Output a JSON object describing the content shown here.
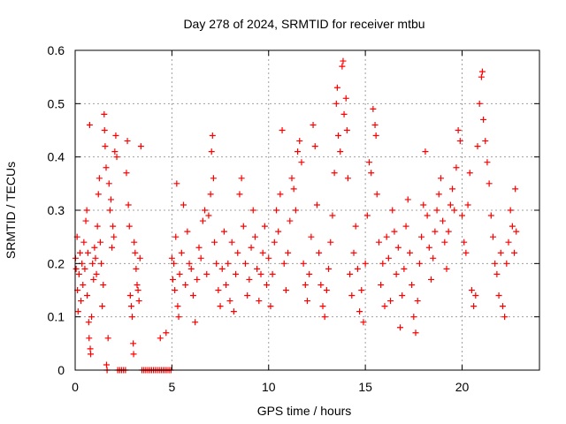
{
  "chart_data": {
    "type": "scatter",
    "title": "Day 278 of 2024, SRMTID for receiver mtbu",
    "xlabel": "GPS time / hours",
    "ylabel": "SRMTID / TECUs",
    "xlim": [
      0,
      24
    ],
    "ylim": [
      0,
      0.6
    ],
    "x_ticks": [
      0,
      5,
      10,
      15,
      20
    ],
    "x_tick_labels": [
      "0",
      "5",
      "10",
      "15",
      "20"
    ],
    "y_ticks": [
      0,
      0.1,
      0.2,
      0.3,
      0.4,
      0.5,
      0.6
    ],
    "y_tick_labels": [
      "0",
      "0.1",
      "0.2",
      "0.3",
      "0.4",
      "0.5",
      "0.6"
    ],
    "grid": true,
    "marker": "+",
    "color": "#ff0000",
    "series": [
      {
        "name": "SRMTID",
        "points": [
          [
            0.02,
            0.21
          ],
          [
            0.05,
            0.19
          ],
          [
            0.1,
            0.25
          ],
          [
            0.12,
            0.15
          ],
          [
            0.15,
            0.11
          ],
          [
            0.2,
            0.18
          ],
          [
            0.25,
            0.22
          ],
          [
            0.3,
            0.13
          ],
          [
            0.35,
            0.2
          ],
          [
            0.4,
            0.16
          ],
          [
            0.45,
            0.24
          ],
          [
            0.5,
            0.19
          ],
          [
            0.55,
            0.28
          ],
          [
            0.6,
            0.3
          ],
          [
            0.62,
            0.14
          ],
          [
            0.66,
            0.22
          ],
          [
            0.7,
            0.09
          ],
          [
            0.72,
            0.06
          ],
          [
            0.75,
            0.46
          ],
          [
            0.78,
            0.04
          ],
          [
            0.8,
            0.03
          ],
          [
            0.85,
            0.1
          ],
          [
            0.9,
            0.2
          ],
          [
            0.95,
            0.17
          ],
          [
            1.0,
            0.23
          ],
          [
            1.05,
            0.21
          ],
          [
            1.1,
            0.18
          ],
          [
            1.15,
            0.27
          ],
          [
            1.2,
            0.33
          ],
          [
            1.25,
            0.36
          ],
          [
            1.3,
            0.24
          ],
          [
            1.35,
            0.2
          ],
          [
            1.4,
            0.12
          ],
          [
            1.45,
            0.16
          ],
          [
            1.5,
            0.48
          ],
          [
            1.52,
            0.45
          ],
          [
            1.55,
            0.42
          ],
          [
            1.6,
            0.38
          ],
          [
            1.62,
            0.01
          ],
          [
            1.65,
            0.0
          ],
          [
            1.7,
            0.06
          ],
          [
            1.75,
            0.35
          ],
          [
            1.8,
            0.3
          ],
          [
            1.85,
            0.32
          ],
          [
            1.9,
            0.23
          ],
          [
            1.95,
            0.27
          ],
          [
            2.0,
            0.25
          ],
          [
            2.05,
            0.41
          ],
          [
            2.1,
            0.44
          ],
          [
            2.15,
            0.4
          ],
          [
            2.2,
            0.0
          ],
          [
            2.3,
            0.0
          ],
          [
            2.4,
            0.0
          ],
          [
            2.5,
            0.0
          ],
          [
            2.6,
            0.0
          ],
          [
            2.65,
            0.37
          ],
          [
            2.7,
            0.43
          ],
          [
            2.75,
            0.31
          ],
          [
            2.8,
            0.27
          ],
          [
            2.85,
            0.14
          ],
          [
            2.9,
            0.12
          ],
          [
            2.95,
            0.1
          ],
          [
            3.0,
            0.05
          ],
          [
            3.02,
            0.03
          ],
          [
            3.05,
            0.24
          ],
          [
            3.1,
            0.22
          ],
          [
            3.15,
            0.19
          ],
          [
            3.2,
            0.16
          ],
          [
            3.25,
            0.15
          ],
          [
            3.3,
            0.13
          ],
          [
            3.35,
            0.21
          ],
          [
            3.4,
            0.42
          ],
          [
            3.45,
            0.0
          ],
          [
            3.55,
            0.0
          ],
          [
            3.65,
            0.0
          ],
          [
            3.75,
            0.0
          ],
          [
            3.85,
            0.0
          ],
          [
            3.95,
            0.0
          ],
          [
            4.05,
            0.0
          ],
          [
            4.15,
            0.0
          ],
          [
            4.25,
            0.0
          ],
          [
            4.35,
            0.0
          ],
          [
            4.4,
            0.06
          ],
          [
            4.45,
            0.0
          ],
          [
            4.55,
            0.0
          ],
          [
            4.65,
            0.0
          ],
          [
            4.7,
            0.07
          ],
          [
            4.75,
            0.0
          ],
          [
            4.85,
            0.0
          ],
          [
            4.95,
            0.0
          ],
          [
            5.0,
            0.21
          ],
          [
            5.05,
            0.17
          ],
          [
            5.1,
            0.2
          ],
          [
            5.15,
            0.15
          ],
          [
            5.2,
            0.25
          ],
          [
            5.25,
            0.35
          ],
          [
            5.3,
            0.12
          ],
          [
            5.35,
            0.1
          ],
          [
            5.4,
            0.18
          ],
          [
            5.5,
            0.22
          ],
          [
            5.6,
            0.31
          ],
          [
            5.7,
            0.16
          ],
          [
            5.8,
            0.26
          ],
          [
            5.9,
            0.2
          ],
          [
            6.0,
            0.19
          ],
          [
            6.1,
            0.14
          ],
          [
            6.2,
            0.09
          ],
          [
            6.3,
            0.17
          ],
          [
            6.4,
            0.23
          ],
          [
            6.5,
            0.21
          ],
          [
            6.6,
            0.28
          ],
          [
            6.7,
            0.3
          ],
          [
            6.8,
            0.18
          ],
          [
            6.9,
            0.29
          ],
          [
            7.0,
            0.33
          ],
          [
            7.05,
            0.41
          ],
          [
            7.1,
            0.44
          ],
          [
            7.15,
            0.36
          ],
          [
            7.2,
            0.24
          ],
          [
            7.3,
            0.2
          ],
          [
            7.4,
            0.15
          ],
          [
            7.5,
            0.12
          ],
          [
            7.6,
            0.19
          ],
          [
            7.7,
            0.26
          ],
          [
            7.8,
            0.16
          ],
          [
            7.9,
            0.2
          ],
          [
            8.0,
            0.13
          ],
          [
            8.1,
            0.24
          ],
          [
            8.2,
            0.11
          ],
          [
            8.3,
            0.18
          ],
          [
            8.4,
            0.22
          ],
          [
            8.5,
            0.33
          ],
          [
            8.6,
            0.36
          ],
          [
            8.7,
            0.27
          ],
          [
            8.8,
            0.2
          ],
          [
            8.9,
            0.14
          ],
          [
            9.0,
            0.17
          ],
          [
            9.1,
            0.23
          ],
          [
            9.2,
            0.3
          ],
          [
            9.3,
            0.25
          ],
          [
            9.4,
            0.19
          ],
          [
            9.5,
            0.13
          ],
          [
            9.6,
            0.18
          ],
          [
            9.7,
            0.22
          ],
          [
            9.8,
            0.27
          ],
          [
            9.9,
            0.16
          ],
          [
            10.0,
            0.21
          ],
          [
            10.1,
            0.12
          ],
          [
            10.2,
            0.18
          ],
          [
            10.3,
            0.24
          ],
          [
            10.4,
            0.3
          ],
          [
            10.5,
            0.26
          ],
          [
            10.6,
            0.33
          ],
          [
            10.7,
            0.45
          ],
          [
            10.8,
            0.2
          ],
          [
            10.9,
            0.15
          ],
          [
            11.0,
            0.22
          ],
          [
            11.1,
            0.28
          ],
          [
            11.2,
            0.36
          ],
          [
            11.3,
            0.34
          ],
          [
            11.4,
            0.3
          ],
          [
            11.5,
            0.41
          ],
          [
            11.6,
            0.43
          ],
          [
            11.7,
            0.39
          ],
          [
            11.8,
            0.2
          ],
          [
            11.9,
            0.16
          ],
          [
            12.0,
            0.13
          ],
          [
            12.1,
            0.18
          ],
          [
            12.2,
            0.25
          ],
          [
            12.3,
            0.46
          ],
          [
            12.4,
            0.42
          ],
          [
            12.5,
            0.31
          ],
          [
            12.6,
            0.22
          ],
          [
            12.7,
            0.16
          ],
          [
            12.8,
            0.12
          ],
          [
            12.9,
            0.1
          ],
          [
            13.0,
            0.15
          ],
          [
            13.1,
            0.19
          ],
          [
            13.2,
            0.24
          ],
          [
            13.3,
            0.29
          ],
          [
            13.4,
            0.37
          ],
          [
            13.5,
            0.5
          ],
          [
            13.55,
            0.53
          ],
          [
            13.6,
            0.44
          ],
          [
            13.7,
            0.41
          ],
          [
            13.8,
            0.57
          ],
          [
            13.85,
            0.58
          ],
          [
            13.9,
            0.48
          ],
          [
            14.0,
            0.51
          ],
          [
            14.05,
            0.45
          ],
          [
            14.1,
            0.36
          ],
          [
            14.2,
            0.18
          ],
          [
            14.3,
            0.14
          ],
          [
            14.4,
            0.22
          ],
          [
            14.5,
            0.27
          ],
          [
            14.6,
            0.19
          ],
          [
            14.7,
            0.11
          ],
          [
            14.8,
            0.15
          ],
          [
            14.9,
            0.09
          ],
          [
            15.0,
            0.2
          ],
          [
            15.1,
            0.29
          ],
          [
            15.2,
            0.39
          ],
          [
            15.3,
            0.37
          ],
          [
            15.4,
            0.49
          ],
          [
            15.5,
            0.46
          ],
          [
            15.55,
            0.44
          ],
          [
            15.6,
            0.33
          ],
          [
            15.7,
            0.24
          ],
          [
            15.8,
            0.16
          ],
          [
            15.9,
            0.2
          ],
          [
            16.0,
            0.12
          ],
          [
            16.1,
            0.25
          ],
          [
            16.2,
            0.21
          ],
          [
            16.3,
            0.13
          ],
          [
            16.4,
            0.3
          ],
          [
            16.5,
            0.26
          ],
          [
            16.6,
            0.18
          ],
          [
            16.7,
            0.23
          ],
          [
            16.8,
            0.08
          ],
          [
            16.9,
            0.14
          ],
          [
            17.0,
            0.19
          ],
          [
            17.1,
            0.27
          ],
          [
            17.2,
            0.32
          ],
          [
            17.3,
            0.22
          ],
          [
            17.4,
            0.16
          ],
          [
            17.5,
            0.1
          ],
          [
            17.6,
            0.07
          ],
          [
            17.7,
            0.13
          ],
          [
            17.8,
            0.2
          ],
          [
            17.9,
            0.25
          ],
          [
            18.0,
            0.31
          ],
          [
            18.1,
            0.41
          ],
          [
            18.2,
            0.29
          ],
          [
            18.3,
            0.23
          ],
          [
            18.4,
            0.17
          ],
          [
            18.5,
            0.21
          ],
          [
            18.6,
            0.26
          ],
          [
            18.7,
            0.3
          ],
          [
            18.8,
            0.33
          ],
          [
            18.9,
            0.36
          ],
          [
            19.0,
            0.28
          ],
          [
            19.1,
            0.24
          ],
          [
            19.2,
            0.19
          ],
          [
            19.3,
            0.26
          ],
          [
            19.4,
            0.31
          ],
          [
            19.5,
            0.34
          ],
          [
            19.6,
            0.3
          ],
          [
            19.7,
            0.38
          ],
          [
            19.8,
            0.45
          ],
          [
            19.9,
            0.43
          ],
          [
            20.0,
            0.29
          ],
          [
            20.1,
            0.24
          ],
          [
            20.2,
            0.22
          ],
          [
            20.3,
            0.31
          ],
          [
            20.4,
            0.37
          ],
          [
            20.5,
            0.15
          ],
          [
            20.6,
            0.12
          ],
          [
            20.7,
            0.14
          ],
          [
            20.8,
            0.42
          ],
          [
            20.9,
            0.5
          ],
          [
            21.0,
            0.55
          ],
          [
            21.05,
            0.56
          ],
          [
            21.1,
            0.47
          ],
          [
            21.2,
            0.43
          ],
          [
            21.3,
            0.39
          ],
          [
            21.4,
            0.35
          ],
          [
            21.5,
            0.29
          ],
          [
            21.6,
            0.25
          ],
          [
            21.7,
            0.2
          ],
          [
            21.8,
            0.18
          ],
          [
            21.9,
            0.14
          ],
          [
            22.0,
            0.22
          ],
          [
            22.1,
            0.12
          ],
          [
            22.2,
            0.1
          ],
          [
            22.3,
            0.2
          ],
          [
            22.4,
            0.24
          ],
          [
            22.5,
            0.3
          ],
          [
            22.6,
            0.27
          ],
          [
            22.7,
            0.22
          ],
          [
            22.75,
            0.34
          ],
          [
            22.8,
            0.26
          ]
        ]
      }
    ]
  }
}
